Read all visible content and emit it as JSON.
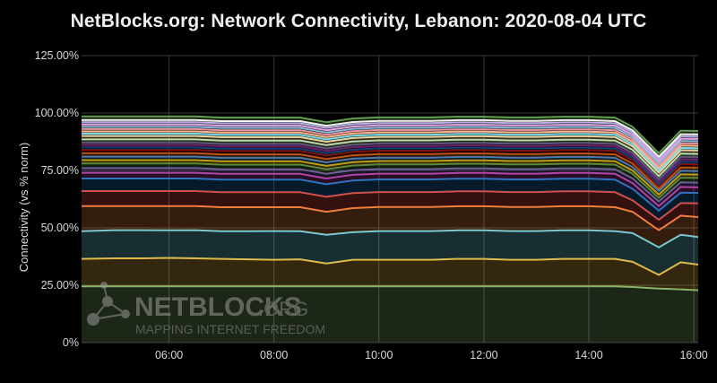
{
  "title": "NetBlocks.org: Network Connectivity, Lebanon: 2020-08-04 UTC",
  "watermark": {
    "brand": "NETBLOCKS",
    "brand_suffix": ".ORG",
    "tagline": "MAPPING INTERNET FREEDOM",
    "logo_icon": "network-nodes-icon"
  },
  "colors": {
    "background": "#000000",
    "grid": "#3a3a3a",
    "text": "#d8d8d8"
  },
  "chart_data": {
    "type": "area",
    "stacked": true,
    "ylabel": "Connectivity (vs % norm)",
    "xlabel": "",
    "ylim": [
      0,
      125
    ],
    "yticks": [
      "0%",
      "25.00%",
      "50.00%",
      "75.00%",
      "100.00%",
      "125.00%"
    ],
    "xlim": [
      "04:20",
      "16:05"
    ],
    "xticks": [
      "06:00",
      "08:00",
      "10:00",
      "12:00",
      "14:00",
      "16:00"
    ],
    "grid": true,
    "x": [
      "04:20",
      "05:00",
      "05:30",
      "06:00",
      "06:30",
      "07:00",
      "07:30",
      "08:00",
      "08:30",
      "09:00",
      "09:30",
      "10:00",
      "10:30",
      "11:00",
      "11:30",
      "12:00",
      "12:30",
      "13:00",
      "13:30",
      "14:00",
      "14:30",
      "14:50",
      "15:20",
      "15:45",
      "16:05"
    ],
    "series": [
      {
        "color": "#7eb26d",
        "values": [
          24.5,
          24.5,
          24.5,
          24.5,
          24.5,
          24.5,
          24.5,
          24.5,
          24.5,
          24.5,
          24.5,
          24.5,
          24.5,
          24.5,
          24.5,
          24.5,
          24.5,
          24.5,
          24.5,
          24.5,
          24.5,
          24.2,
          23.5,
          23.2,
          22.8
        ]
      },
      {
        "color": "#eab839",
        "values": [
          12.0,
          12.2,
          12.2,
          12.4,
          12.2,
          12.0,
          11.8,
          11.6,
          11.8,
          10.0,
          11.6,
          11.6,
          11.6,
          11.6,
          12.0,
          12.0,
          11.6,
          11.6,
          12.0,
          12.0,
          12.0,
          11.0,
          6.0,
          11.8,
          11.2
        ]
      },
      {
        "color": "#6ed0e0",
        "values": [
          12.0,
          12.3,
          12.3,
          12.0,
          12.3,
          12.0,
          12.2,
          12.5,
          12.2,
          12.5,
          12.0,
          12.5,
          12.5,
          12.5,
          12.4,
          12.4,
          12.5,
          12.5,
          12.4,
          12.4,
          12.0,
          12.5,
          12.0,
          12.0,
          12.0
        ]
      },
      {
        "color": "#ef843c",
        "values": [
          11.0,
          10.5,
          10.5,
          10.6,
          10.5,
          10.5,
          10.5,
          10.4,
          10.5,
          10.0,
          10.5,
          10.5,
          10.5,
          10.5,
          10.5,
          10.5,
          10.5,
          10.5,
          10.5,
          10.5,
          10.5,
          9.3,
          7.5,
          8.3,
          8.7
        ]
      },
      {
        "color": "#e24d42",
        "values": [
          6.5,
          6.5,
          6.5,
          6.5,
          6.5,
          6.5,
          6.5,
          6.5,
          6.5,
          6.5,
          6.5,
          6.5,
          6.5,
          6.5,
          6.5,
          6.5,
          6.5,
          6.5,
          6.5,
          6.5,
          6.5,
          5.0,
          4.5,
          5.5,
          6.0
        ]
      },
      {
        "color": "#1f78c1",
        "values": [
          5.5,
          5.5,
          5.5,
          5.5,
          5.5,
          5.5,
          5.5,
          5.5,
          5.5,
          5.5,
          5.5,
          5.5,
          5.5,
          5.5,
          5.5,
          5.5,
          5.5,
          5.5,
          5.5,
          5.5,
          5.5,
          5.0,
          4.0,
          4.5,
          4.5
        ]
      },
      {
        "color": "#ba43a9",
        "values": [
          2.5,
          2.5,
          2.5,
          2.5,
          2.5,
          2.5,
          2.5,
          2.5,
          2.5,
          2.5,
          2.5,
          2.5,
          2.5,
          2.5,
          2.5,
          2.5,
          2.5,
          2.5,
          2.5,
          2.5,
          2.5,
          2.5,
          2.0,
          2.5,
          2.5
        ]
      },
      {
        "color": "#705da0",
        "values": [
          2.0,
          2.0,
          2.0,
          2.0,
          2.0,
          2.0,
          2.0,
          2.0,
          2.0,
          2.0,
          2.0,
          2.0,
          2.0,
          2.0,
          2.0,
          2.0,
          2.0,
          2.0,
          2.0,
          2.0,
          2.0,
          2.0,
          2.0,
          2.0,
          2.0
        ]
      },
      {
        "color": "#508642",
        "values": [
          2.0,
          2.0,
          2.0,
          2.0,
          2.0,
          2.0,
          2.0,
          2.0,
          2.0,
          2.0,
          2.0,
          2.0,
          2.0,
          2.0,
          2.0,
          2.0,
          2.0,
          2.0,
          2.0,
          2.0,
          2.0,
          2.0,
          1.5,
          2.0,
          2.0
        ]
      },
      {
        "color": "#cca300",
        "values": [
          1.5,
          1.5,
          1.5,
          1.5,
          1.5,
          1.5,
          1.5,
          1.5,
          1.5,
          1.5,
          1.5,
          1.5,
          1.5,
          1.5,
          1.5,
          1.5,
          1.5,
          1.5,
          1.5,
          1.5,
          1.5,
          1.5,
          1.5,
          1.5,
          1.5
        ]
      },
      {
        "color": "#447ebc",
        "values": [
          1.5,
          1.5,
          1.5,
          1.5,
          1.5,
          1.5,
          1.5,
          1.5,
          1.5,
          1.5,
          1.5,
          1.5,
          1.5,
          1.5,
          1.5,
          1.5,
          1.5,
          1.5,
          1.5,
          1.5,
          1.5,
          1.5,
          1.5,
          1.5,
          1.5
        ]
      },
      {
        "color": "#c15c17",
        "values": [
          1.5,
          1.5,
          1.5,
          1.5,
          1.5,
          1.5,
          1.5,
          1.5,
          1.5,
          1.5,
          1.5,
          1.5,
          1.5,
          1.5,
          1.5,
          1.5,
          1.5,
          1.5,
          1.5,
          1.5,
          1.5,
          1.5,
          1.0,
          1.5,
          1.5
        ]
      },
      {
        "color": "#890f02",
        "values": [
          1.5,
          1.5,
          1.5,
          1.5,
          1.5,
          1.5,
          1.5,
          1.5,
          1.5,
          1.5,
          1.5,
          1.5,
          1.5,
          1.5,
          1.5,
          1.5,
          1.5,
          1.5,
          1.5,
          1.5,
          1.5,
          1.5,
          1.0,
          1.5,
          1.5
        ]
      },
      {
        "color": "#0a437c",
        "values": [
          1.0,
          1.0,
          1.0,
          1.0,
          1.0,
          1.0,
          1.0,
          1.0,
          1.0,
          1.0,
          1.0,
          1.0,
          1.0,
          1.0,
          1.0,
          1.0,
          1.0,
          1.0,
          1.0,
          1.0,
          1.0,
          1.0,
          1.0,
          1.0,
          1.0
        ]
      },
      {
        "color": "#6d1f62",
        "values": [
          1.0,
          1.0,
          1.0,
          1.0,
          1.0,
          1.0,
          1.0,
          1.0,
          1.0,
          1.0,
          1.0,
          1.0,
          1.0,
          1.0,
          1.0,
          1.0,
          1.0,
          1.0,
          1.0,
          1.0,
          1.0,
          1.0,
          1.0,
          1.0,
          1.0
        ]
      },
      {
        "color": "#584477",
        "values": [
          1.0,
          1.0,
          1.0,
          1.0,
          1.0,
          1.0,
          1.0,
          1.0,
          1.0,
          1.0,
          1.0,
          1.0,
          1.0,
          1.0,
          1.0,
          1.0,
          1.0,
          1.0,
          1.0,
          1.0,
          1.0,
          1.0,
          1.0,
          1.0,
          1.0
        ]
      },
      {
        "color": "#b7dbab",
        "values": [
          1.5,
          1.5,
          1.5,
          1.5,
          1.5,
          1.5,
          1.5,
          1.5,
          1.5,
          1.5,
          1.5,
          1.5,
          1.5,
          1.5,
          1.5,
          1.5,
          1.5,
          1.5,
          1.5,
          1.5,
          1.5,
          1.5,
          1.5,
          1.5,
          1.5
        ]
      },
      {
        "color": "#f4d598",
        "values": [
          1.5,
          1.5,
          1.5,
          1.5,
          1.5,
          1.5,
          1.5,
          1.5,
          1.5,
          1.5,
          1.5,
          1.5,
          1.5,
          1.5,
          1.5,
          1.5,
          1.5,
          1.5,
          1.5,
          1.5,
          1.5,
          1.5,
          1.5,
          1.5,
          1.5
        ]
      },
      {
        "color": "#70dbed",
        "values": [
          1.0,
          1.0,
          1.0,
          1.0,
          1.0,
          1.0,
          1.0,
          1.0,
          1.0,
          1.0,
          1.0,
          1.0,
          1.0,
          1.0,
          1.0,
          1.0,
          1.0,
          1.0,
          1.0,
          1.0,
          1.0,
          1.0,
          1.0,
          1.0,
          1.0
        ]
      },
      {
        "color": "#f9ba8f",
        "values": [
          1.0,
          1.0,
          1.0,
          1.0,
          1.0,
          1.0,
          1.0,
          1.0,
          1.0,
          1.0,
          1.0,
          1.0,
          1.0,
          1.0,
          1.0,
          1.0,
          1.0,
          1.0,
          1.0,
          1.0,
          1.0,
          1.0,
          1.0,
          1.0,
          1.0
        ]
      },
      {
        "color": "#f29191",
        "values": [
          1.0,
          1.0,
          1.0,
          1.0,
          1.0,
          1.0,
          1.0,
          1.0,
          1.0,
          1.0,
          1.0,
          1.0,
          1.0,
          1.0,
          1.0,
          1.0,
          1.0,
          1.0,
          1.0,
          1.0,
          1.0,
          1.0,
          1.0,
          1.0,
          1.0
        ]
      },
      {
        "color": "#82b5d8",
        "values": [
          1.0,
          1.0,
          1.0,
          1.0,
          1.0,
          1.0,
          1.0,
          1.0,
          1.0,
          1.0,
          1.0,
          1.0,
          1.0,
          1.0,
          1.0,
          1.0,
          1.0,
          1.0,
          1.0,
          1.0,
          1.0,
          1.0,
          1.0,
          1.0,
          1.0
        ]
      },
      {
        "color": "#e5a8e2",
        "values": [
          1.0,
          1.0,
          1.0,
          1.0,
          1.0,
          1.0,
          1.0,
          1.0,
          1.0,
          1.0,
          1.0,
          1.0,
          1.0,
          1.0,
          1.0,
          1.0,
          1.0,
          1.0,
          1.0,
          1.0,
          1.0,
          1.0,
          1.0,
          1.0,
          1.0
        ]
      },
      {
        "color": "#aea2e0",
        "values": [
          1.0,
          1.0,
          1.0,
          1.0,
          1.0,
          1.0,
          1.0,
          1.0,
          1.0,
          1.0,
          1.0,
          1.0,
          1.0,
          1.0,
          1.0,
          1.0,
          1.0,
          1.0,
          1.0,
          1.0,
          1.0,
          1.0,
          1.0,
          1.0,
          1.0
        ]
      },
      {
        "color": "#ffffff",
        "values": [
          1.0,
          1.0,
          1.0,
          1.0,
          1.0,
          1.0,
          1.0,
          1.0,
          1.0,
          1.0,
          1.0,
          1.0,
          1.0,
          1.0,
          1.0,
          1.0,
          1.0,
          1.0,
          1.0,
          1.0,
          1.0,
          1.0,
          1.0,
          1.0,
          1.0
        ]
      },
      {
        "color": "#629e51",
        "values": [
          1.5,
          1.5,
          1.5,
          1.5,
          1.5,
          1.5,
          1.5,
          1.5,
          1.5,
          1.5,
          1.5,
          1.5,
          1.5,
          1.5,
          1.5,
          1.5,
          1.5,
          1.5,
          1.5,
          1.5,
          1.5,
          1.5,
          1.5,
          1.5,
          1.5
        ]
      }
    ]
  }
}
